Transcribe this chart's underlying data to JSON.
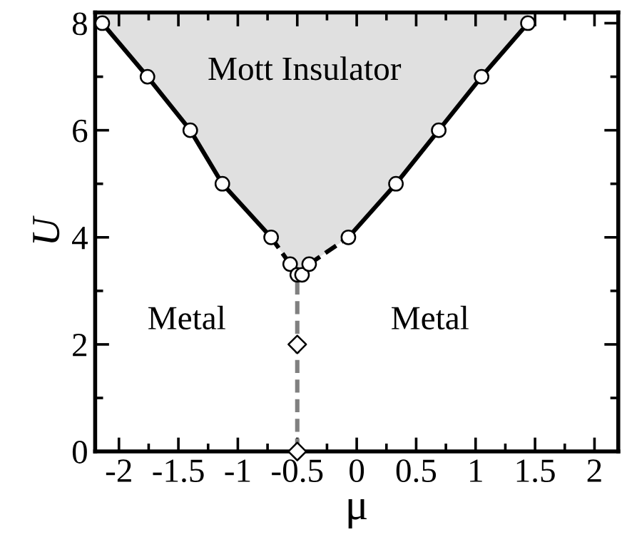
{
  "chart_data": {
    "type": "line",
    "xlabel": "μ",
    "ylabel": "U",
    "xlim": [
      -2.2,
      2.2
    ],
    "ylim": [
      0,
      8.2
    ],
    "xticks": [
      -2,
      {
        "value": -1.75,
        "label": null
      },
      -1.5,
      {
        "value": -1.25,
        "label": null
      },
      -1,
      {
        "value": -0.75,
        "label": null
      },
      -0.5,
      {
        "value": -0.25,
        "label": null
      },
      0,
      {
        "value": 0.25,
        "label": null
      },
      0.5,
      {
        "value": 0.75,
        "label": null
      },
      1,
      {
        "value": 1.25,
        "label": null
      },
      1.5,
      {
        "value": 1.75,
        "label": null
      },
      2
    ],
    "yticks": [
      0,
      {
        "value": 1,
        "label": null
      },
      2,
      {
        "value": 3,
        "label": null
      },
      4,
      {
        "value": 5,
        "label": null
      },
      6,
      {
        "value": 7,
        "label": null
      },
      8
    ],
    "grid": false,
    "legend": false,
    "series": [
      {
        "color": "#808080",
        "line_style": "dashed",
        "marker": "none",
        "x": [
          -0.5,
          -0.5
        ],
        "values": [
          0,
          3.3
        ]
      },
      {
        "type": "scatter",
        "color": "#000000",
        "marker": "diamond",
        "x": [
          -0.5,
          -0.5
        ],
        "values": [
          0,
          2
        ]
      },
      {
        "color": "#000000",
        "line_style": "solid",
        "marker": "none",
        "x": [
          -2.14,
          -1.76,
          -1.4,
          -1.13,
          -0.72
        ],
        "values": [
          8,
          7,
          6,
          5,
          4
        ]
      },
      {
        "color": "#000000",
        "line_style": "dashed",
        "marker": "none",
        "x": [
          -0.72,
          -0.56
        ],
        "values": [
          4,
          3.5
        ]
      },
      {
        "color": "#000000",
        "line_style": "dashed",
        "marker": "none",
        "x": [
          -0.4,
          -0.07
        ],
        "values": [
          3.5,
          4
        ]
      },
      {
        "color": "#000000",
        "line_style": "solid",
        "marker": "none",
        "x": [
          -0.07,
          0.33,
          0.69,
          1.05,
          1.44
        ],
        "values": [
          4,
          5,
          6,
          7,
          8
        ]
      },
      {
        "type": "scatter",
        "color": "#000000",
        "marker": "circle",
        "x": [
          -2.14,
          -1.76,
          -1.4,
          -1.13,
          -0.72,
          -0.56,
          -0.5,
          -0.46,
          -0.4,
          -0.07,
          0.33,
          0.69,
          1.05,
          1.44
        ],
        "values": [
          8,
          7,
          6,
          5,
          4,
          3.5,
          3.3,
          3.3,
          3.5,
          4,
          5,
          6,
          7,
          8
        ]
      }
    ],
    "annotations": [
      "Mott Insulator",
      "Metal",
      "Metal"
    ]
  }
}
